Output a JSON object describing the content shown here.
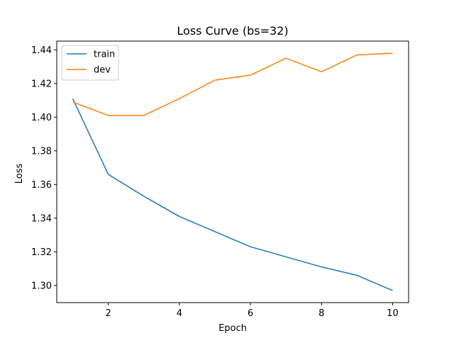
{
  "chart_data": {
    "type": "line",
    "title": "Loss Curve (bs=32)",
    "xlabel": "Epoch",
    "ylabel": "Loss",
    "x": [
      1,
      2,
      3,
      4,
      5,
      6,
      7,
      8,
      9,
      10
    ],
    "series": [
      {
        "name": "train",
        "color": "#1f77b4",
        "values": [
          1.411,
          1.366,
          1.353,
          1.341,
          1.332,
          1.323,
          1.317,
          1.311,
          1.306,
          1.297
        ]
      },
      {
        "name": "dev",
        "color": "#ff7f0e",
        "values": [
          1.409,
          1.401,
          1.401,
          1.411,
          1.422,
          1.425,
          1.435,
          1.427,
          1.437,
          1.438
        ]
      }
    ],
    "xlim": [
      0.55,
      10.45
    ],
    "ylim": [
      1.2898,
      1.4452
    ],
    "xticks": [
      2,
      4,
      6,
      8,
      10
    ],
    "xtick_labels": [
      "2",
      "4",
      "6",
      "8",
      "10"
    ],
    "yticks": [
      1.3,
      1.32,
      1.34,
      1.36,
      1.38,
      1.4,
      1.42,
      1.44
    ],
    "ytick_labels": [
      "1.30",
      "1.32",
      "1.34",
      "1.36",
      "1.38",
      "1.40",
      "1.42",
      "1.44"
    ],
    "grid": false,
    "legend_position": "top-left"
  }
}
